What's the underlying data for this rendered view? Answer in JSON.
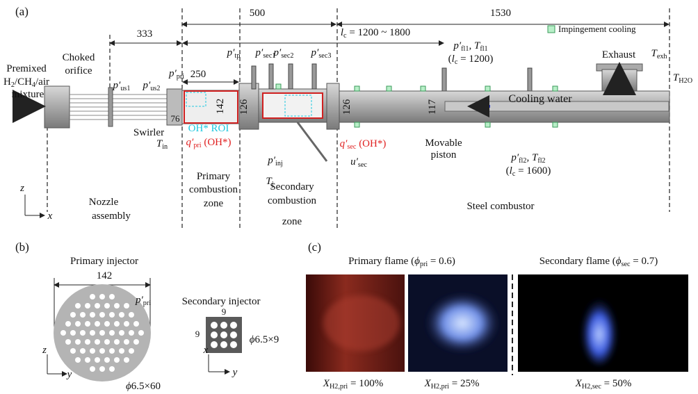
{
  "panel_a": {
    "labels": [
      [
        "(a)"
      ],
      [
        "333"
      ],
      [
        "500"
      ],
      [
        "1530"
      ],
      [
        {
          "v": "l"
        },
        {
          "sub": "c"
        },
        " = 1200 ~ 1800"
      ],
      [
        "Impingement cooling"
      ],
      [
        "Premixed"
      ],
      [
        "H",
        {
          "sub": "2"
        },
        "/CH",
        {
          "sub": "4"
        },
        "/air"
      ],
      [
        "mixture"
      ],
      [
        "Choked"
      ],
      [
        "orifice"
      ],
      [
        {
          "v": "p′"
        },
        {
          "sub": "us1"
        }
      ],
      [
        {
          "v": "p′"
        },
        {
          "sub": "us2"
        }
      ],
      [
        {
          "v": "p′"
        },
        {
          "sub": "pri"
        }
      ],
      [
        {
          "v": "p′"
        },
        {
          "sub": "tp"
        }
      ],
      [
        {
          "v": "p′"
        },
        {
          "sub": "sec1"
        }
      ],
      [
        {
          "v": "p′"
        },
        {
          "sub": "sec2"
        }
      ],
      [
        {
          "v": "p′"
        },
        {
          "sub": "sec3"
        }
      ],
      [
        {
          "v": "p′"
        },
        {
          "sub": "fl1"
        },
        ", ",
        {
          "v": "T"
        },
        {
          "sub": "fl1"
        }
      ],
      [
        "(",
        {
          "v": "l"
        },
        {
          "sub": "c"
        },
        " = 1200)"
      ],
      [
        "250"
      ],
      [
        "76"
      ],
      [
        "142"
      ],
      [
        "126"
      ],
      [
        "126"
      ],
      [
        "117"
      ],
      [
        "Swirler"
      ],
      [
        {
          "v": "T"
        },
        {
          "sub": "in"
        }
      ],
      [
        "OH* ROI"
      ],
      [
        {
          "v": "q′"
        },
        {
          "sub": "pri"
        },
        " (OH*)"
      ],
      [
        {
          "v": "p′"
        },
        {
          "sub": "inj"
        }
      ],
      [
        {
          "v": "T"
        },
        {
          "sub": "j"
        }
      ],
      [
        {
          "v": "q′"
        },
        {
          "sub": "sec"
        },
        " (OH*)"
      ],
      [
        {
          "v": "u′"
        },
        {
          "sub": "sec"
        }
      ],
      [
        "Movable"
      ],
      [
        "piston"
      ],
      [
        {
          "v": "p′"
        },
        {
          "sub": "fl2"
        },
        ", ",
        {
          "v": "T"
        },
        {
          "sub": "fl2"
        }
      ],
      [
        "(",
        {
          "v": "l"
        },
        {
          "sub": "c"
        },
        " = 1600)"
      ],
      [
        "Exhaust"
      ],
      [
        {
          "v": "T"
        },
        {
          "sub": "exh"
        }
      ],
      [
        {
          "v": "T"
        },
        {
          "sub": "H2O"
        }
      ],
      [
        "Cooling water"
      ],
      [
        "Nozzle"
      ],
      [
        "assembly"
      ],
      [
        "Primary"
      ],
      [
        "combustion"
      ],
      [
        "zone"
      ],
      [
        "Secondary"
      ],
      [
        "combustion"
      ],
      [
        "zone"
      ],
      [
        "Steel combustor"
      ],
      [
        {
          "v": "z"
        }
      ],
      [
        {
          "v": "x"
        }
      ]
    ]
  },
  "panel_b": {
    "labels": [
      [
        "(b)"
      ],
      [
        "Primary injector"
      ],
      [
        "142"
      ],
      [
        {
          "v": "p′"
        },
        {
          "sub": "pri"
        }
      ],
      [
        {
          "v": "ϕ"
        },
        "6.5×60"
      ],
      [
        "Secondary injector"
      ],
      [
        "9"
      ],
      [
        "9"
      ],
      [
        {
          "v": "ϕ"
        },
        "6.5×9"
      ],
      [
        {
          "v": "z"
        }
      ],
      [
        {
          "v": "y"
        }
      ],
      [
        {
          "v": "x"
        }
      ],
      [
        {
          "v": "y"
        }
      ]
    ]
  },
  "panel_c": {
    "labels": [
      [
        "(c)"
      ],
      [
        "Primary flame (",
        {
          "v": "ϕ"
        },
        {
          "sub": "pri"
        },
        " = 0.6)"
      ],
      [
        "Secondary flame (",
        {
          "v": "ϕ"
        },
        {
          "sub": "sec"
        },
        " = 0.7)"
      ],
      [
        {
          "v": "X"
        },
        {
          "sub": "H2,pri"
        },
        " = 100%"
      ],
      [
        {
          "v": "X"
        },
        {
          "sub": "H2,pri"
        },
        " = 25%"
      ],
      [
        {
          "v": "X"
        },
        {
          "sub": "H2,sec"
        },
        " = 50%"
      ]
    ]
  }
}
